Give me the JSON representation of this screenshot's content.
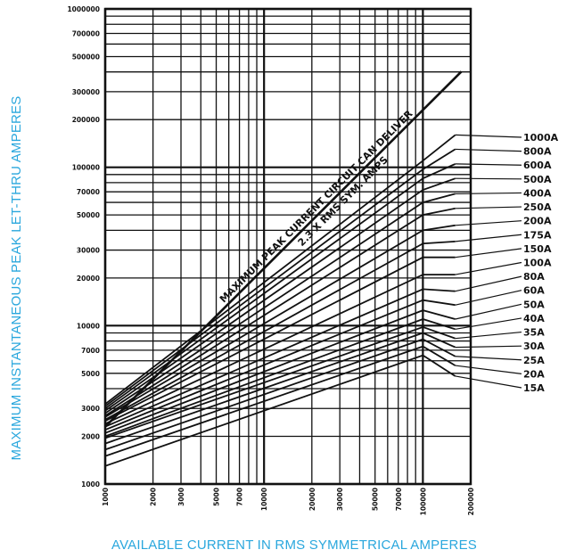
{
  "chart_data": {
    "type": "line",
    "title": "",
    "xlabel": "AVAILABLE CURRENT IN RMS SYMMETRICAL AMPERES",
    "ylabel": "MAXIMUM INSTANTANEOUS PEAK LET-THRU AMPERES",
    "x_scale": "log",
    "y_scale": "log",
    "xlim": [
      1000,
      200000
    ],
    "ylim": [
      1000,
      1000000
    ],
    "x_ticks": [
      {
        "value": 1000,
        "label": "1000"
      },
      {
        "value": 2000,
        "label": "2000"
      },
      {
        "value": 3000,
        "label": "3000"
      },
      {
        "value": 5000,
        "label": "5000"
      },
      {
        "value": 7000,
        "label": "7000"
      },
      {
        "value": 10000,
        "label": "10000"
      },
      {
        "value": 20000,
        "label": "20000"
      },
      {
        "value": 30000,
        "label": "30000"
      },
      {
        "value": 50000,
        "label": "50000"
      },
      {
        "value": 70000,
        "label": "70000"
      },
      {
        "value": 100000,
        "label": "100000"
      },
      {
        "value": 200000,
        "label": "200000"
      }
    ],
    "y_ticks": [
      {
        "value": 1000,
        "label": "1000"
      },
      {
        "value": 2000,
        "label": "2000"
      },
      {
        "value": 3000,
        "label": "3000"
      },
      {
        "value": 5000,
        "label": "5000"
      },
      {
        "value": 7000,
        "label": "7000"
      },
      {
        "value": 10000,
        "label": "10000"
      },
      {
        "value": 20000,
        "label": "20000"
      },
      {
        "value": 30000,
        "label": "30000"
      },
      {
        "value": 50000,
        "label": "50000"
      },
      {
        "value": 70000,
        "label": "70000"
      },
      {
        "value": 100000,
        "label": "100000"
      },
      {
        "value": 200000,
        "label": "200000"
      },
      {
        "value": 300000,
        "label": "300000"
      },
      {
        "value": 500000,
        "label": "500000"
      },
      {
        "value": 700000,
        "label": "700000"
      },
      {
        "value": 1000000,
        "label": "1000000"
      }
    ],
    "grid": true,
    "diagonal_label_1": "MAXIMUM PEAK CURRENT CIRCUIT CAN DELIVER",
    "diagonal_label_2": "2.3 X RMS SYM. AMPS",
    "diagonal": {
      "x": [
        1000,
        175000
      ],
      "y": [
        2300,
        402500
      ]
    },
    "series": [
      {
        "name": "15A",
        "x": [
          1000,
          100000,
          160000
        ],
        "y": [
          1300,
          6500,
          4800
        ]
      },
      {
        "name": "20A",
        "x": [
          1000,
          100000,
          160000
        ],
        "y": [
          1500,
          7400,
          5600
        ]
      },
      {
        "name": "25A",
        "x": [
          1000,
          100000,
          160000
        ],
        "y": [
          1650,
          8200,
          6400
        ]
      },
      {
        "name": "30A",
        "x": [
          1000,
          100000,
          160000
        ],
        "y": [
          1800,
          9000,
          7300
        ]
      },
      {
        "name": "35A",
        "x": [
          1000,
          100000,
          160000
        ],
        "y": [
          1950,
          9800,
          8300
        ]
      },
      {
        "name": "40A",
        "x": [
          1000,
          100000,
          160000
        ],
        "y": [
          2000,
          11000,
          9500
        ]
      },
      {
        "name": "50A",
        "x": [
          1000,
          100000,
          160000
        ],
        "y": [
          2100,
          12500,
          11000
        ]
      },
      {
        "name": "60A",
        "x": [
          1000,
          100000,
          160000
        ],
        "y": [
          2200,
          14500,
          13500
        ]
      },
      {
        "name": "80A",
        "x": [
          1000,
          100000,
          160000
        ],
        "y": [
          2300,
          17000,
          16500
        ]
      },
      {
        "name": "100A",
        "x": [
          1000,
          100000,
          160000
        ],
        "y": [
          2400,
          21000,
          21000
        ]
      },
      {
        "name": "150A",
        "x": [
          1000,
          100000,
          160000
        ],
        "y": [
          2500,
          27000,
          27000
        ]
      },
      {
        "name": "175A",
        "x": [
          1000,
          100000,
          160000
        ],
        "y": [
          2550,
          33000,
          34000
        ]
      },
      {
        "name": "200A",
        "x": [
          1000,
          100000,
          160000
        ],
        "y": [
          2650,
          40000,
          43000
        ]
      },
      {
        "name": "250A",
        "x": [
          1000,
          100000,
          160000
        ],
        "y": [
          2700,
          50000,
          55000
        ]
      },
      {
        "name": "400A",
        "x": [
          1000,
          100000,
          160000
        ],
        "y": [
          2800,
          60000,
          68000
        ]
      },
      {
        "name": "500A",
        "x": [
          1000,
          100000,
          160000
        ],
        "y": [
          2900,
          72000,
          85000
        ]
      },
      {
        "name": "600A",
        "x": [
          1000,
          100000,
          160000
        ],
        "y": [
          3000,
          85000,
          105000
        ]
      },
      {
        "name": "800A",
        "x": [
          1000,
          100000,
          160000
        ],
        "y": [
          3100,
          97000,
          130000
        ]
      },
      {
        "name": "1000A",
        "x": [
          1000,
          100000,
          160000
        ],
        "y": [
          3200,
          110000,
          160000
        ]
      }
    ]
  }
}
